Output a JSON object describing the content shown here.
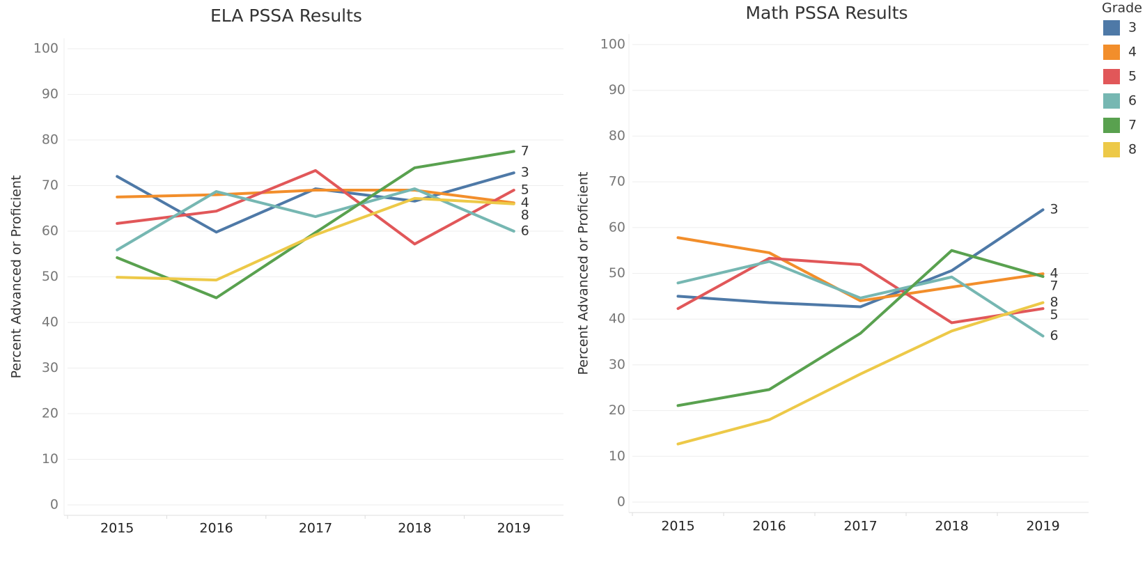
{
  "legend_title": "Grade",
  "chart_data": [
    {
      "type": "line",
      "title": "ELA PSSA Results",
      "y_label": "Percent Advanced or Proficient",
      "categories": [
        "2015",
        "2016",
        "2017",
        "2018",
        "2019"
      ],
      "ylim": [
        0,
        100
      ],
      "yticks": [
        0,
        10,
        20,
        30,
        40,
        50,
        60,
        70,
        80,
        90,
        100
      ],
      "grid": true,
      "series": [
        {
          "name": "3",
          "color": "#4e79a7",
          "values": [
            72,
            59.8,
            69.3,
            66.6,
            72.8
          ]
        },
        {
          "name": "4",
          "color": "#f28e2b",
          "values": [
            67.5,
            68,
            69,
            69,
            66.2
          ]
        },
        {
          "name": "5",
          "color": "#e15759",
          "values": [
            61.7,
            64.4,
            73.3,
            57.2,
            69
          ]
        },
        {
          "name": "6",
          "color": "#76b7b2",
          "values": [
            55.9,
            68.7,
            63.2,
            69.3,
            60
          ]
        },
        {
          "name": "7",
          "color": "#59a14f",
          "values": [
            54.2,
            45.4,
            59.7,
            73.9,
            77.5
          ]
        },
        {
          "name": "8",
          "color": "#edc948",
          "values": [
            49.9,
            49.3,
            59.2,
            67.2,
            66
          ]
        }
      ]
    },
    {
      "type": "line",
      "title": "Math PSSA Results",
      "y_label": "Percent Advanced or Proficient",
      "categories": [
        "2015",
        "2016",
        "2017",
        "2018",
        "2019"
      ],
      "ylim": [
        0,
        100
      ],
      "yticks": [
        0,
        10,
        20,
        30,
        40,
        50,
        60,
        70,
        80,
        90,
        100
      ],
      "grid": true,
      "series": [
        {
          "name": "3",
          "color": "#4e79a7",
          "values": [
            45,
            43.6,
            42.7,
            50.6,
            63.9
          ]
        },
        {
          "name": "4",
          "color": "#f28e2b",
          "values": [
            57.8,
            54.5,
            44,
            47,
            49.9
          ]
        },
        {
          "name": "5",
          "color": "#e15759",
          "values": [
            42.3,
            53.3,
            51.9,
            39.2,
            42.3
          ]
        },
        {
          "name": "6",
          "color": "#76b7b2",
          "values": [
            47.9,
            52.6,
            44.6,
            49.2,
            36.3
          ]
        },
        {
          "name": "7",
          "color": "#59a14f",
          "values": [
            21.1,
            24.6,
            36.9,
            55,
            49.3
          ]
        },
        {
          "name": "8",
          "color": "#edc948",
          "values": [
            12.7,
            18,
            28,
            37.4,
            43.6
          ]
        }
      ]
    }
  ]
}
